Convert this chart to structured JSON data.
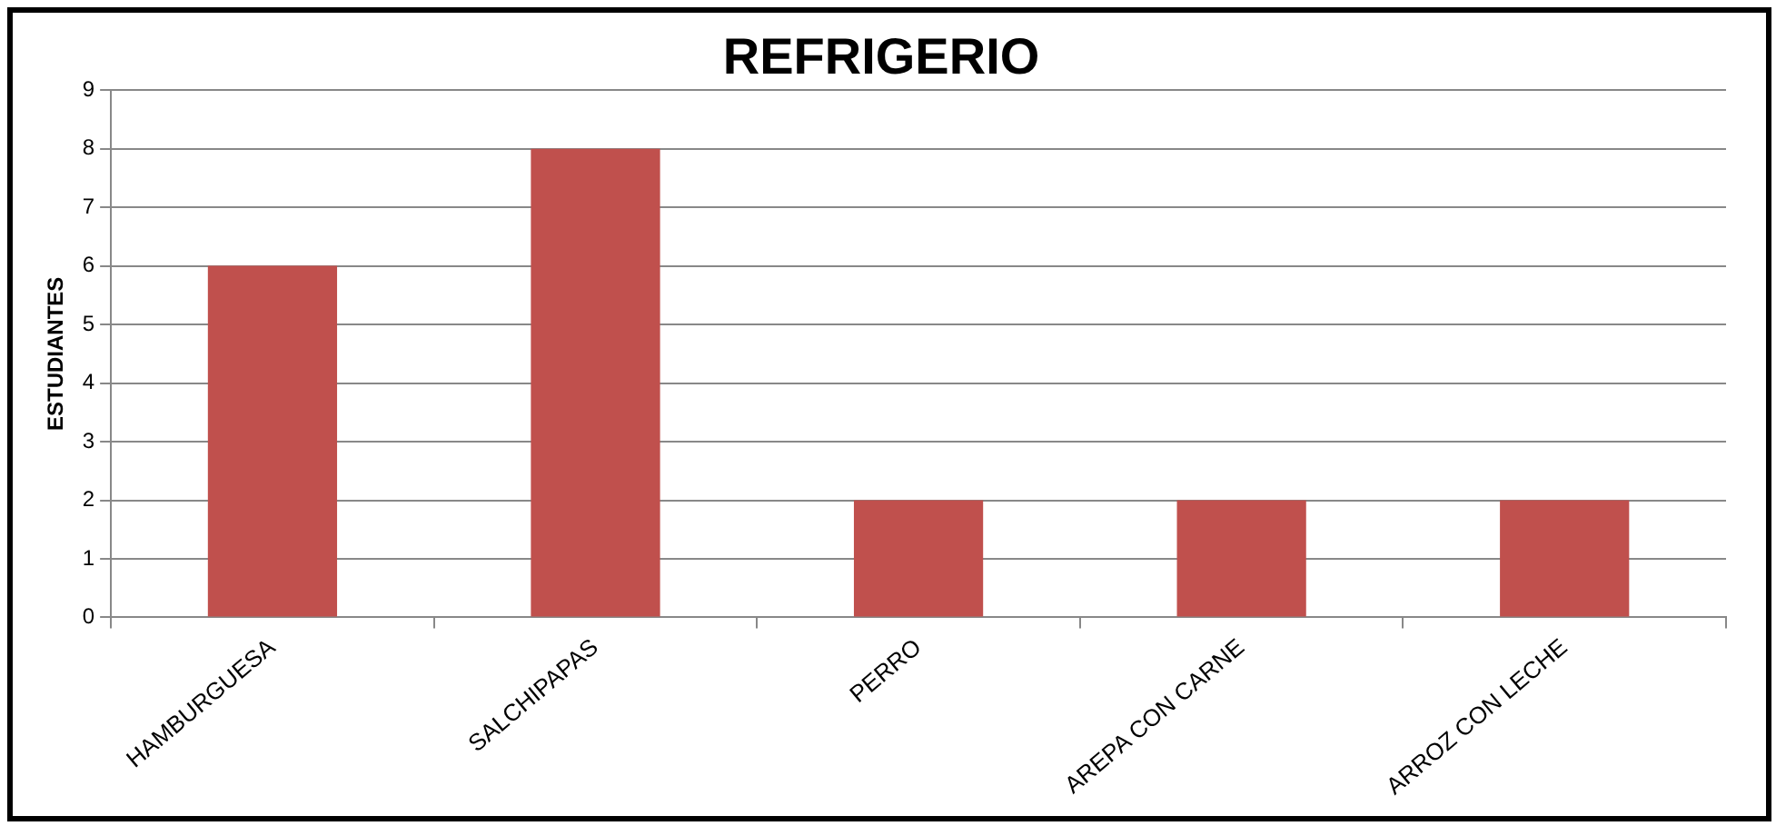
{
  "chart_data": {
    "type": "bar",
    "title": "REFRIGERIO",
    "ylabel": "ESTUDIANTES",
    "categories": [
      "HAMBURGUESA",
      "SALCHIPAPAS",
      "PERRO",
      "AREPA CON CARNE",
      "ARROZ CON LECHE"
    ],
    "values": [
      6,
      8,
      2,
      2,
      2
    ],
    "color": "#c0504d",
    "ylim": [
      0,
      9
    ],
    "yticks": [
      0,
      1,
      2,
      3,
      4,
      5,
      6,
      7,
      8,
      9
    ],
    "grid": "y"
  }
}
